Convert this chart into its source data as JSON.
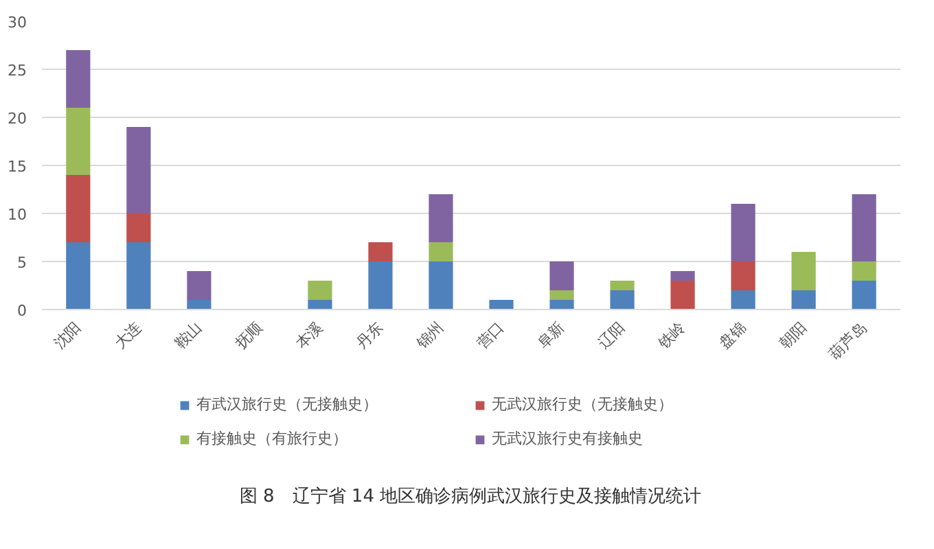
{
  "chart_data": {
    "type": "bar",
    "stacked": true,
    "categories": [
      "沈阳",
      "大连",
      "鞍山",
      "抚顺",
      "本溪",
      "丹东",
      "锦州",
      "营口",
      "阜新",
      "辽阳",
      "铁岭",
      "盘锦",
      "朝阳",
      "葫芦岛"
    ],
    "series": [
      {
        "name": "有武汉旅行史（无接触史）",
        "color": "#4f81bd",
        "values": [
          7,
          7,
          1,
          0,
          1,
          5,
          5,
          1,
          1,
          2,
          0,
          2,
          2,
          3
        ]
      },
      {
        "name": "无武汉旅行史（无接触史）",
        "color": "#c0504d",
        "values": [
          7,
          3,
          0,
          0,
          0,
          2,
          0,
          0,
          0,
          0,
          3,
          3,
          0,
          0
        ]
      },
      {
        "name": "有接触史（有旅行史）",
        "color": "#9bbb59",
        "values": [
          7,
          0,
          0,
          0,
          2,
          0,
          2,
          0,
          1,
          1,
          0,
          0,
          4,
          2
        ]
      },
      {
        "name": "无武汉旅行史有接触史",
        "color": "#8064a2",
        "values": [
          6,
          9,
          3,
          0,
          0,
          0,
          5,
          0,
          3,
          0,
          1,
          6,
          0,
          7
        ]
      }
    ],
    "ylim": [
      0,
      30
    ],
    "yticks": [
      0,
      5,
      10,
      15,
      20,
      25,
      30
    ],
    "grid": "y",
    "legend": "bottom",
    "annotations": [
      "图 8　辽宁省 14 地区确诊病例武汉旅行史及接触情况统计"
    ]
  }
}
